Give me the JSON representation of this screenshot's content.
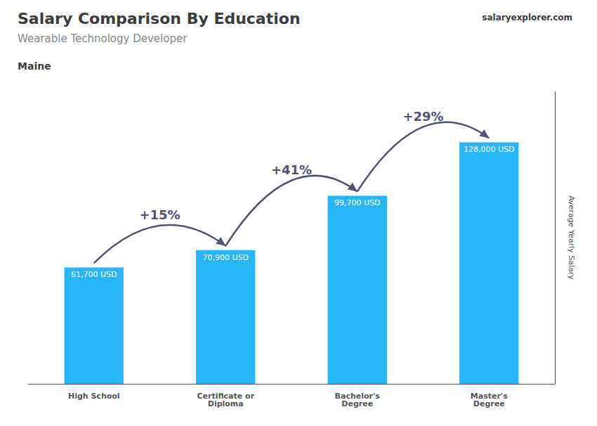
{
  "chart_data": {
    "type": "bar",
    "title": "Salary Comparison By Education",
    "subtitle": "Wearable Technology Developer",
    "location": "Maine",
    "watermark": [
      "salary",
      "explorer",
      ".com"
    ],
    "ylabel": "Average Yearly Salary",
    "categories": [
      "High School",
      "Certificate or\nDiploma",
      "Bachelor's\nDegree",
      "Master's\nDegree"
    ],
    "values": [
      61700,
      70900,
      99700,
      128000
    ],
    "value_labels": [
      "61,700 USD",
      "70,900 USD",
      "99,700 USD",
      "128,000 USD"
    ],
    "data_labels": true,
    "change_labels": [
      "+15%",
      "+41%",
      "+29%"
    ],
    "color": "#29b6f6",
    "ylim": [
      0,
      155000
    ],
    "grid": false,
    "tick_labels": "x"
  }
}
